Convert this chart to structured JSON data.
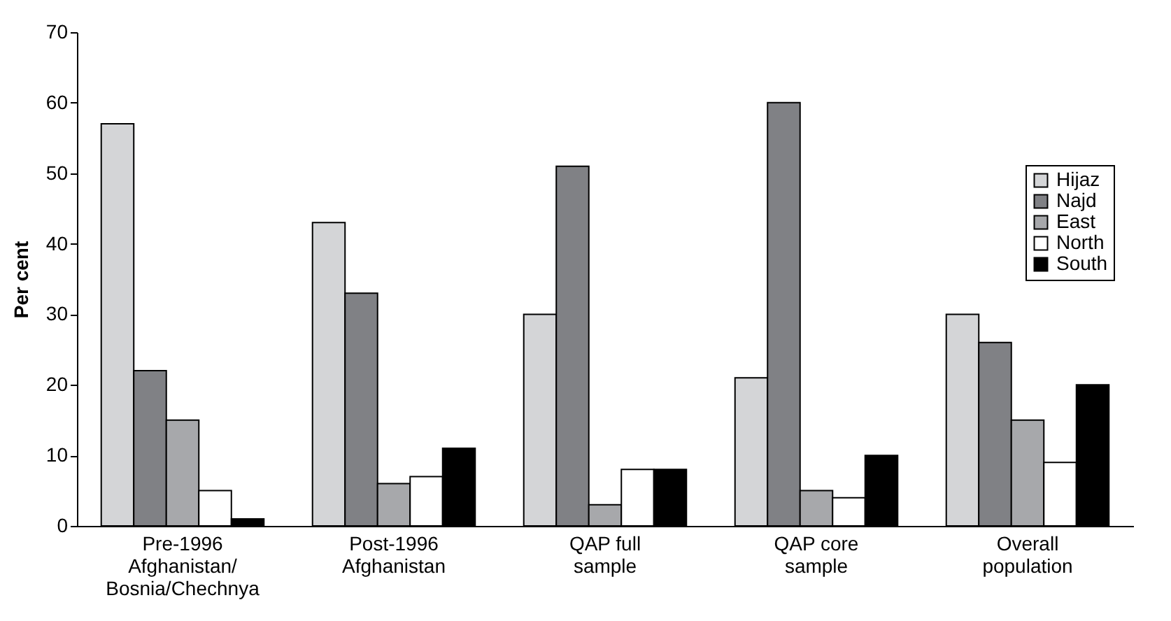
{
  "chart_data": {
    "type": "bar",
    "ylabel": "Per cent",
    "categories": [
      "Pre-1996\nAfghanistan/\nBosnia/Chechnya",
      "Post-1996\nAfghanistan",
      "QAP full\nsample",
      "QAP core\nsample",
      "Overall\npopulation"
    ],
    "series": [
      {
        "name": "Hijaz",
        "color": "#d4d5d7",
        "values": [
          57,
          43,
          30,
          21,
          30
        ]
      },
      {
        "name": "Najd",
        "color": "#808185",
        "values": [
          22,
          33,
          51,
          60,
          26
        ]
      },
      {
        "name": "East",
        "color": "#a7a8ab",
        "values": [
          15,
          6,
          3,
          5,
          15
        ]
      },
      {
        "name": "North",
        "color": "#ffffff",
        "values": [
          5,
          7,
          8,
          4,
          9
        ]
      },
      {
        "name": "South",
        "color": "#000000",
        "values": [
          1,
          11,
          8,
          10,
          20
        ]
      }
    ],
    "ylim": [
      0,
      70
    ],
    "yticks": [
      0,
      10,
      20,
      30,
      40,
      50,
      60,
      70
    ],
    "grid": false,
    "legend": "right"
  }
}
